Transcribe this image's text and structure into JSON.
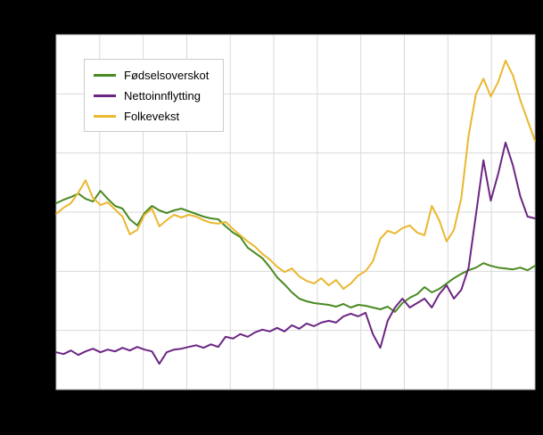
{
  "colors": {
    "page_background": "#000000",
    "plot_background": "#ffffff",
    "grid": "#d9d9d9",
    "plot_border": "#bfbfbf",
    "series_green": "#4a8a22",
    "series_purple": "#6c2583",
    "series_yellow": "#eab72e"
  },
  "chart_data": {
    "type": "line",
    "title": "",
    "xlabel": "",
    "ylabel": "",
    "axis_tick_labels_visible": false,
    "grid": true,
    "legend_position": "top-left",
    "x_grid_intervals": 11,
    "y_grid_intervals": 6,
    "ylim": [
      -10,
      70
    ],
    "x_note": "x axis is an evenly spaced time series of 66 points; no tick labels are visible in the image",
    "y_note": "y values are estimated relative units read from unlabeled gridlines",
    "series": [
      {
        "name": "Fødselsoverskot",
        "color": "#4a8a22",
        "values": [
          32.0,
          32.8,
          33.4,
          34.2,
          33.0,
          32.4,
          34.8,
          33.0,
          31.4,
          30.8,
          28.4,
          27.0,
          29.8,
          31.4,
          30.4,
          29.8,
          30.4,
          30.8,
          30.2,
          29.6,
          29.0,
          28.6,
          28.4,
          26.8,
          25.4,
          24.4,
          22.0,
          20.8,
          19.6,
          17.6,
          15.3,
          13.7,
          11.9,
          10.5,
          9.9,
          9.5,
          9.3,
          9.1,
          8.7,
          9.3,
          8.5,
          9.1,
          8.9,
          8.5,
          8.1,
          8.7,
          7.5,
          9.5,
          10.7,
          11.5,
          13.1,
          11.9,
          12.7,
          13.9,
          15.1,
          16.1,
          16.9,
          17.5,
          18.5,
          17.9,
          17.5,
          17.3,
          17.1,
          17.5,
          16.9,
          17.9
        ]
      },
      {
        "name": "Nettoinnflytting",
        "color": "#6c2583",
        "values": [
          -1.6,
          -2.0,
          -1.2,
          -2.2,
          -1.4,
          -0.8,
          -1.6,
          -1.0,
          -1.4,
          -0.6,
          -1.2,
          -0.4,
          -1.0,
          -1.4,
          -4.2,
          -1.6,
          -1.0,
          -0.8,
          -0.4,
          0.0,
          -0.6,
          0.2,
          -0.4,
          1.9,
          1.5,
          2.5,
          1.9,
          2.9,
          3.5,
          3.1,
          3.9,
          3.1,
          4.5,
          3.7,
          4.9,
          4.3,
          5.1,
          5.5,
          5.1,
          6.5,
          7.1,
          6.5,
          7.3,
          2.5,
          -0.6,
          5.5,
          8.5,
          10.5,
          8.5,
          9.5,
          10.5,
          8.5,
          11.5,
          13.5,
          10.5,
          12.5,
          17.5,
          29.6,
          41.7,
          32.6,
          38.6,
          45.7,
          40.6,
          33.6,
          29.0,
          28.6
        ]
      },
      {
        "name": "Folkevekst",
        "color": "#eab72e",
        "values": [
          29.6,
          31.0,
          32.0,
          34.4,
          37.2,
          33.2,
          31.6,
          32.2,
          30.6,
          29.0,
          25.0,
          26.0,
          29.4,
          30.8,
          26.8,
          28.2,
          29.4,
          28.8,
          29.4,
          29.0,
          28.2,
          27.6,
          27.4,
          27.8,
          26.2,
          24.8,
          23.4,
          22.2,
          20.6,
          19.3,
          17.7,
          16.5,
          17.3,
          15.5,
          14.5,
          13.9,
          15.1,
          13.5,
          14.7,
          12.7,
          13.9,
          15.7,
          16.7,
          18.9,
          24.0,
          25.8,
          25.2,
          26.4,
          27.0,
          25.4,
          24.8,
          31.4,
          28.2,
          23.4,
          26.0,
          33.2,
          47.3,
          56.7,
          60.1,
          56.1,
          59.3,
          64.2,
          60.9,
          55.3,
          50.7,
          46.1
        ]
      }
    ]
  },
  "legend": {
    "items": [
      {
        "label": "Fødselsoverskot"
      },
      {
        "label": "Nettoinnflytting"
      },
      {
        "label": "Folkevekst"
      }
    ]
  }
}
